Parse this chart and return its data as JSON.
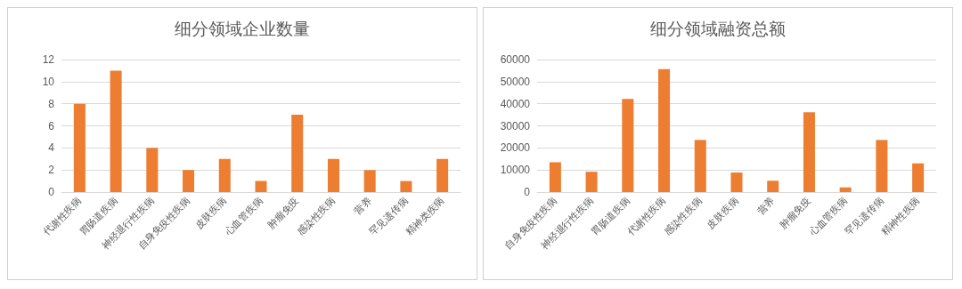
{
  "chart_data": [
    {
      "type": "bar",
      "title": "细分领域企业数量",
      "categories": [
        "代谢性疾病",
        "胃肠道疾病",
        "神经退行性疾病",
        "自身免疫性疾病",
        "皮肤疾病",
        "心血管疾病",
        "肿瘤免疫",
        "感染性疾病",
        "营养",
        "罕见遗传病",
        "精神类疾病"
      ],
      "values": [
        8,
        11,
        4,
        2,
        3,
        1,
        7,
        3,
        2,
        1,
        3
      ],
      "color": "#ed7d31",
      "ylim": [
        0,
        12
      ],
      "yticks": [
        0,
        2,
        4,
        6,
        8,
        10,
        12
      ],
      "grid": "y"
    },
    {
      "type": "bar",
      "title": "细分领域融资总额",
      "categories": [
        "自身免疫性疾病",
        "神经退行性疾病",
        "胃肠道疾病",
        "代谢性疾病",
        "感染性疾病",
        "皮肤疾病",
        "营养",
        "肿瘤免疫",
        "心血管疾病",
        "罕见遗传病",
        "精神性疾病"
      ],
      "values": [
        13500,
        9200,
        42200,
        55700,
        23600,
        8900,
        5100,
        36100,
        2100,
        23600,
        13000
      ],
      "color": "#ed7d31",
      "ylim": [
        0,
        60000
      ],
      "yticks": [
        0,
        10000,
        20000,
        30000,
        40000,
        50000,
        60000
      ],
      "grid": "y"
    }
  ]
}
